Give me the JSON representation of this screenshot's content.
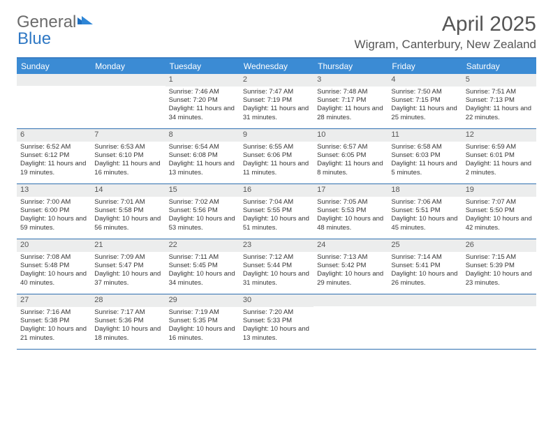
{
  "brand": {
    "part1": "General",
    "part2": "Blue"
  },
  "header": {
    "title": "April 2025",
    "location": "Wigram, Canterbury, New Zealand"
  },
  "colors": {
    "accent": "#3b8bd4",
    "rule": "#2e6fb0",
    "daybar": "#eceded",
    "text": "#333333",
    "heading": "#555555"
  },
  "dow": [
    "Sunday",
    "Monday",
    "Tuesday",
    "Wednesday",
    "Thursday",
    "Friday",
    "Saturday"
  ],
  "weeks": [
    [
      null,
      null,
      {
        "n": "1",
        "sr": "7:46 AM",
        "ss": "7:20 PM",
        "dl": "11 hours and 34 minutes."
      },
      {
        "n": "2",
        "sr": "7:47 AM",
        "ss": "7:19 PM",
        "dl": "11 hours and 31 minutes."
      },
      {
        "n": "3",
        "sr": "7:48 AM",
        "ss": "7:17 PM",
        "dl": "11 hours and 28 minutes."
      },
      {
        "n": "4",
        "sr": "7:50 AM",
        "ss": "7:15 PM",
        "dl": "11 hours and 25 minutes."
      },
      {
        "n": "5",
        "sr": "7:51 AM",
        "ss": "7:13 PM",
        "dl": "11 hours and 22 minutes."
      }
    ],
    [
      {
        "n": "6",
        "sr": "6:52 AM",
        "ss": "6:12 PM",
        "dl": "11 hours and 19 minutes."
      },
      {
        "n": "7",
        "sr": "6:53 AM",
        "ss": "6:10 PM",
        "dl": "11 hours and 16 minutes."
      },
      {
        "n": "8",
        "sr": "6:54 AM",
        "ss": "6:08 PM",
        "dl": "11 hours and 13 minutes."
      },
      {
        "n": "9",
        "sr": "6:55 AM",
        "ss": "6:06 PM",
        "dl": "11 hours and 11 minutes."
      },
      {
        "n": "10",
        "sr": "6:57 AM",
        "ss": "6:05 PM",
        "dl": "11 hours and 8 minutes."
      },
      {
        "n": "11",
        "sr": "6:58 AM",
        "ss": "6:03 PM",
        "dl": "11 hours and 5 minutes."
      },
      {
        "n": "12",
        "sr": "6:59 AM",
        "ss": "6:01 PM",
        "dl": "11 hours and 2 minutes."
      }
    ],
    [
      {
        "n": "13",
        "sr": "7:00 AM",
        "ss": "6:00 PM",
        "dl": "10 hours and 59 minutes."
      },
      {
        "n": "14",
        "sr": "7:01 AM",
        "ss": "5:58 PM",
        "dl": "10 hours and 56 minutes."
      },
      {
        "n": "15",
        "sr": "7:02 AM",
        "ss": "5:56 PM",
        "dl": "10 hours and 53 minutes."
      },
      {
        "n": "16",
        "sr": "7:04 AM",
        "ss": "5:55 PM",
        "dl": "10 hours and 51 minutes."
      },
      {
        "n": "17",
        "sr": "7:05 AM",
        "ss": "5:53 PM",
        "dl": "10 hours and 48 minutes."
      },
      {
        "n": "18",
        "sr": "7:06 AM",
        "ss": "5:51 PM",
        "dl": "10 hours and 45 minutes."
      },
      {
        "n": "19",
        "sr": "7:07 AM",
        "ss": "5:50 PM",
        "dl": "10 hours and 42 minutes."
      }
    ],
    [
      {
        "n": "20",
        "sr": "7:08 AM",
        "ss": "5:48 PM",
        "dl": "10 hours and 40 minutes."
      },
      {
        "n": "21",
        "sr": "7:09 AM",
        "ss": "5:47 PM",
        "dl": "10 hours and 37 minutes."
      },
      {
        "n": "22",
        "sr": "7:11 AM",
        "ss": "5:45 PM",
        "dl": "10 hours and 34 minutes."
      },
      {
        "n": "23",
        "sr": "7:12 AM",
        "ss": "5:44 PM",
        "dl": "10 hours and 31 minutes."
      },
      {
        "n": "24",
        "sr": "7:13 AM",
        "ss": "5:42 PM",
        "dl": "10 hours and 29 minutes."
      },
      {
        "n": "25",
        "sr": "7:14 AM",
        "ss": "5:41 PM",
        "dl": "10 hours and 26 minutes."
      },
      {
        "n": "26",
        "sr": "7:15 AM",
        "ss": "5:39 PM",
        "dl": "10 hours and 23 minutes."
      }
    ],
    [
      {
        "n": "27",
        "sr": "7:16 AM",
        "ss": "5:38 PM",
        "dl": "10 hours and 21 minutes."
      },
      {
        "n": "28",
        "sr": "7:17 AM",
        "ss": "5:36 PM",
        "dl": "10 hours and 18 minutes."
      },
      {
        "n": "29",
        "sr": "7:19 AM",
        "ss": "5:35 PM",
        "dl": "10 hours and 16 minutes."
      },
      {
        "n": "30",
        "sr": "7:20 AM",
        "ss": "5:33 PM",
        "dl": "10 hours and 13 minutes."
      },
      null,
      null,
      null
    ]
  ],
  "labels": {
    "sunrise": "Sunrise: ",
    "sunset": "Sunset: ",
    "daylight": "Daylight: "
  }
}
